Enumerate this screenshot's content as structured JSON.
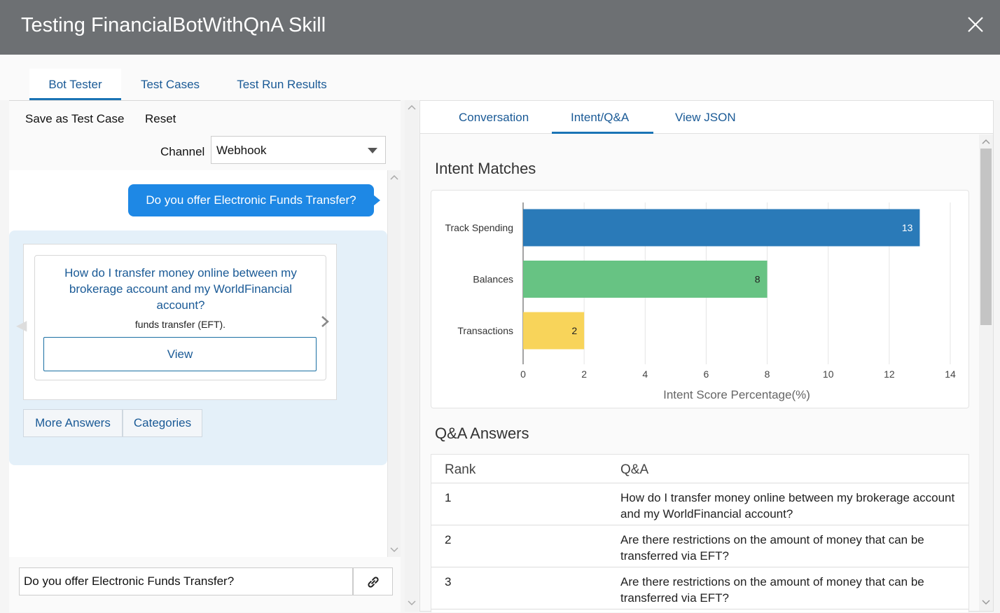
{
  "window": {
    "title": "Testing FinancialBotWithQnA Skill"
  },
  "main_tabs": [
    {
      "label": "Bot Tester",
      "active": true
    },
    {
      "label": "Test Cases",
      "active": false
    },
    {
      "label": "Test Run Results",
      "active": false
    }
  ],
  "toolbar": {
    "save_label": "Save as Test Case",
    "reset_label": "Reset",
    "channel_label": "Channel",
    "channel_value": "Webhook"
  },
  "conversation": {
    "user_message": "Do you offer Electronic Funds Transfer?",
    "card": {
      "title": "How do I transfer money online between my brokerage account and my WorldFinancial account?",
      "subtitle": "funds transfer (EFT).",
      "button_label": "View"
    },
    "quick_replies": [
      "More Answers",
      "Categories"
    ]
  },
  "input": {
    "value": "Do you offer Electronic Funds Transfer?"
  },
  "sub_tabs": [
    {
      "label": "Conversation",
      "active": false
    },
    {
      "label": "Intent/Q&A",
      "active": true
    },
    {
      "label": "View JSON",
      "active": false
    }
  ],
  "intent_section": {
    "heading": "Intent Matches"
  },
  "chart_data": {
    "type": "bar",
    "orientation": "horizontal",
    "categories": [
      "Track Spending",
      "Balances",
      "Transactions"
    ],
    "values": [
      13,
      8,
      2
    ],
    "colors": [
      "#2a7ab8",
      "#67c383",
      "#f8d45a"
    ],
    "xlabel": "Intent Score Percentage(%)",
    "xlim": [
      0,
      14
    ],
    "xticks": [
      0,
      2,
      4,
      6,
      8,
      10,
      12,
      14
    ],
    "grid": true,
    "legend": "none"
  },
  "qa_section": {
    "heading": "Q&A Answers",
    "columns": [
      "Rank",
      "Q&A"
    ],
    "rows": [
      {
        "rank": "1",
        "text": "How do I transfer money online between my brokerage account and my WorldFinancial account?"
      },
      {
        "rank": "2",
        "text": "Are there restrictions on the amount of money that can be transferred via EFT?"
      },
      {
        "rank": "3",
        "text": "Are there restrictions on the amount of money that can be transferred via EFT?"
      }
    ]
  }
}
